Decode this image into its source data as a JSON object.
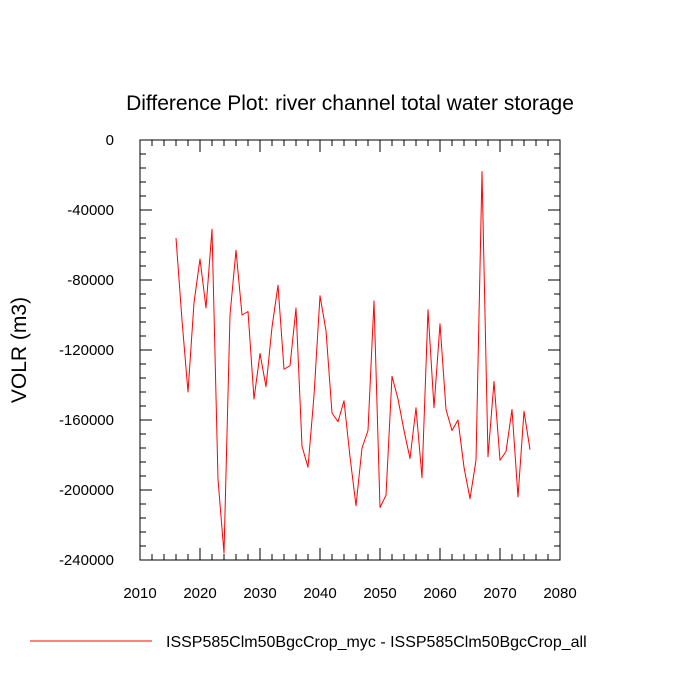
{
  "chart_data": {
    "type": "line",
    "title": "Difference Plot: river channel total water storage",
    "xlabel": "",
    "ylabel": "VOLR  (m3)",
    "xlim": [
      2010,
      2080
    ],
    "ylim": [
      -240000,
      0
    ],
    "xticks": [
      2010,
      2020,
      2030,
      2040,
      2050,
      2060,
      2070,
      2080
    ],
    "yticks": [
      0,
      -40000,
      -80000,
      -120000,
      -160000,
      -200000,
      -240000
    ],
    "ytick_labels": [
      "0",
      "-40000",
      "-80000",
      "-120000",
      "-160000",
      "-200000",
      "-240000"
    ],
    "grid": false,
    "legend_position": "bottom",
    "series": [
      {
        "name": "ISSP585Clm50BgcCrop_myc - ISSP585Clm50BgcCrop_all",
        "color": "#ff0000",
        "x": [
          2016,
          2017,
          2018,
          2019,
          2020,
          2021,
          2022,
          2023,
          2024,
          2025,
          2026,
          2027,
          2028,
          2029,
          2030,
          2031,
          2032,
          2033,
          2034,
          2035,
          2036,
          2037,
          2038,
          2039,
          2040,
          2041,
          2042,
          2043,
          2044,
          2045,
          2046,
          2047,
          2048,
          2049,
          2050,
          2051,
          2052,
          2053,
          2054,
          2055,
          2056,
          2057,
          2058,
          2059,
          2060,
          2061,
          2062,
          2063,
          2064,
          2065,
          2066,
          2067,
          2068,
          2069,
          2070,
          2071,
          2072,
          2073,
          2074,
          2075
        ],
        "y": [
          -56000,
          -103000,
          -144000,
          -93000,
          -68000,
          -96000,
          -51000,
          -194000,
          -236000,
          -100000,
          -63000,
          -100000,
          -98000,
          -148000,
          -122000,
          -141000,
          -107000,
          -83000,
          -131000,
          -129000,
          -96000,
          -175000,
          -187000,
          -146000,
          -89000,
          -109000,
          -156000,
          -161000,
          -149000,
          -181000,
          -209000,
          -176000,
          -166000,
          -92000,
          -210000,
          -203000,
          -135000,
          -148000,
          -166000,
          -182000,
          -153000,
          -193000,
          -97000,
          -153000,
          -105000,
          -154000,
          -166000,
          -160000,
          -187000,
          -205000,
          -183000,
          -18000,
          -181000,
          -138000,
          -183000,
          -178000,
          -154000,
          -204000,
          -155000,
          -177000
        ]
      }
    ]
  }
}
